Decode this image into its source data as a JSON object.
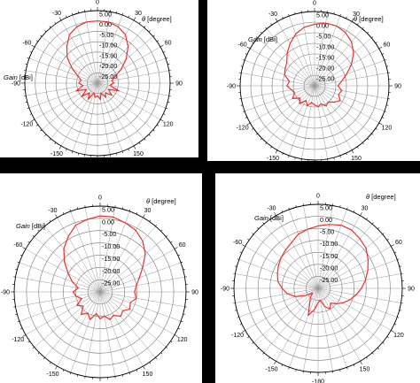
{
  "colors": {
    "trace": "#e8312f",
    "background": "#000000",
    "panel": "#ffffff"
  },
  "common": {
    "gain_label_word": "Gain",
    "gain_label_unit": "[dBi]",
    "theta_symbol": "θ",
    "theta_unit": "[degree]"
  },
  "chart_data": [
    {
      "type": "polar-line",
      "radial_ticks": [
        "5.00",
        "0.00",
        "-5.00",
        "-10.00",
        "-15.00",
        "-20.00",
        "-25.00"
      ],
      "angle_ticks": [
        "0",
        "30",
        "60",
        "90",
        "120",
        "150",
        "-180",
        "-150",
        "-120",
        "-90",
        "-60",
        "-30"
      ],
      "rlim": [
        -30,
        5
      ],
      "series": [
        {
          "theta": [
            0,
            10,
            20,
            30,
            40,
            50,
            60,
            70,
            80,
            90,
            100,
            110,
            120,
            130,
            140,
            150,
            160,
            170,
            180,
            190,
            200,
            210,
            220,
            230,
            240,
            250,
            260,
            270,
            280,
            290,
            300,
            310,
            320,
            330,
            340,
            350
          ],
          "gain": [
            0,
            0,
            -1,
            -3,
            -7,
            -12,
            -17,
            -21,
            -23,
            -22,
            -24,
            -19,
            -24,
            -21,
            -24,
            -22,
            -25,
            -22,
            -24,
            -23,
            -25,
            -21,
            -24,
            -20,
            -24,
            -19,
            -23,
            -21,
            -22,
            -20,
            -16,
            -11,
            -7,
            -3,
            -1,
            0
          ]
        }
      ]
    },
    {
      "type": "polar-line",
      "radial_ticks": [
        "5.00",
        "0.00",
        "-5.00",
        "-10.00",
        "-15.00",
        "-20.00",
        "-25.00"
      ],
      "angle_ticks": [
        "0",
        "30",
        "60",
        "90",
        "120",
        "150",
        "-180",
        "-150",
        "-120",
        "-90",
        "-60",
        "-30"
      ],
      "rlim": [
        -30,
        5
      ],
      "series": [
        {
          "theta": [
            0,
            10,
            20,
            30,
            40,
            50,
            60,
            70,
            80,
            90,
            100,
            110,
            120,
            130,
            140,
            150,
            160,
            170,
            180,
            190,
            200,
            210,
            220,
            230,
            240,
            250,
            260,
            270,
            280,
            290,
            300,
            310,
            320,
            330,
            340,
            350
          ],
          "gain": [
            -1,
            0,
            0,
            -1,
            -3,
            -6,
            -10,
            -14,
            -17,
            -19,
            -17,
            -18,
            -16,
            -18,
            -20,
            -19,
            -21,
            -20,
            -21,
            -22,
            -20,
            -22,
            -19,
            -21,
            -18,
            -20,
            -19,
            -17,
            -18,
            -15,
            -14,
            -13,
            -10,
            -7,
            -4,
            -2
          ]
        }
      ]
    },
    {
      "type": "polar-line",
      "radial_ticks": [
        "5.00",
        "0.00",
        "-5.00",
        "-10.00",
        "-15.00",
        "-20.00",
        "-25.00"
      ],
      "angle_ticks": [
        "0",
        "30",
        "60",
        "90",
        "120",
        "150",
        "-180",
        "-150",
        "-120",
        "-90",
        "-60",
        "-30"
      ],
      "rlim": [
        -30,
        5
      ],
      "series": [
        {
          "theta": [
            0,
            10,
            20,
            30,
            40,
            50,
            60,
            70,
            80,
            90,
            100,
            110,
            120,
            130,
            140,
            150,
            160,
            170,
            180,
            190,
            200,
            210,
            220,
            230,
            240,
            250,
            260,
            270,
            280,
            290,
            300,
            310,
            320,
            330,
            340,
            350
          ],
          "gain": [
            1,
            1,
            0,
            -1,
            -3,
            -6,
            -10,
            -13,
            -15,
            -16,
            -15,
            -17,
            -16,
            -18,
            -17,
            -19,
            -18,
            -20,
            -19,
            -21,
            -18,
            -20,
            -18,
            -21,
            -19,
            -22,
            -20,
            -19,
            -21,
            -18,
            -15,
            -11,
            -7,
            -4,
            -1,
            0
          ]
        }
      ]
    },
    {
      "type": "polar-line",
      "radial_ticks": [
        "5.00",
        "0.00",
        "-5.00",
        "-10.00",
        "-15.00",
        "-20.00",
        "-25.00"
      ],
      "angle_ticks": [
        "0",
        "30",
        "60",
        "90",
        "120",
        "150",
        "-180",
        "-150",
        "-120",
        "-90",
        "-60",
        "-30"
      ],
      "rlim": [
        -30,
        5
      ],
      "series": [
        {
          "theta": [
            0,
            10,
            20,
            30,
            40,
            50,
            60,
            70,
            80,
            90,
            100,
            110,
            120,
            130,
            140,
            150,
            160,
            170,
            180,
            190,
            200,
            210,
            220,
            230,
            240,
            250,
            260,
            270,
            280,
            290,
            300,
            310,
            320,
            330,
            340,
            350
          ],
          "gain": [
            -4,
            -3,
            -2,
            -2,
            -3,
            -4,
            -6,
            -8,
            -10,
            -12,
            -14,
            -16,
            -18,
            -20,
            -22,
            -20,
            -22,
            -25,
            -24,
            -21,
            -18,
            -23,
            -25,
            -27,
            -24,
            -20,
            -17,
            -15,
            -13,
            -12,
            -11,
            -10,
            -9,
            -8,
            -6,
            -5
          ]
        }
      ]
    }
  ]
}
